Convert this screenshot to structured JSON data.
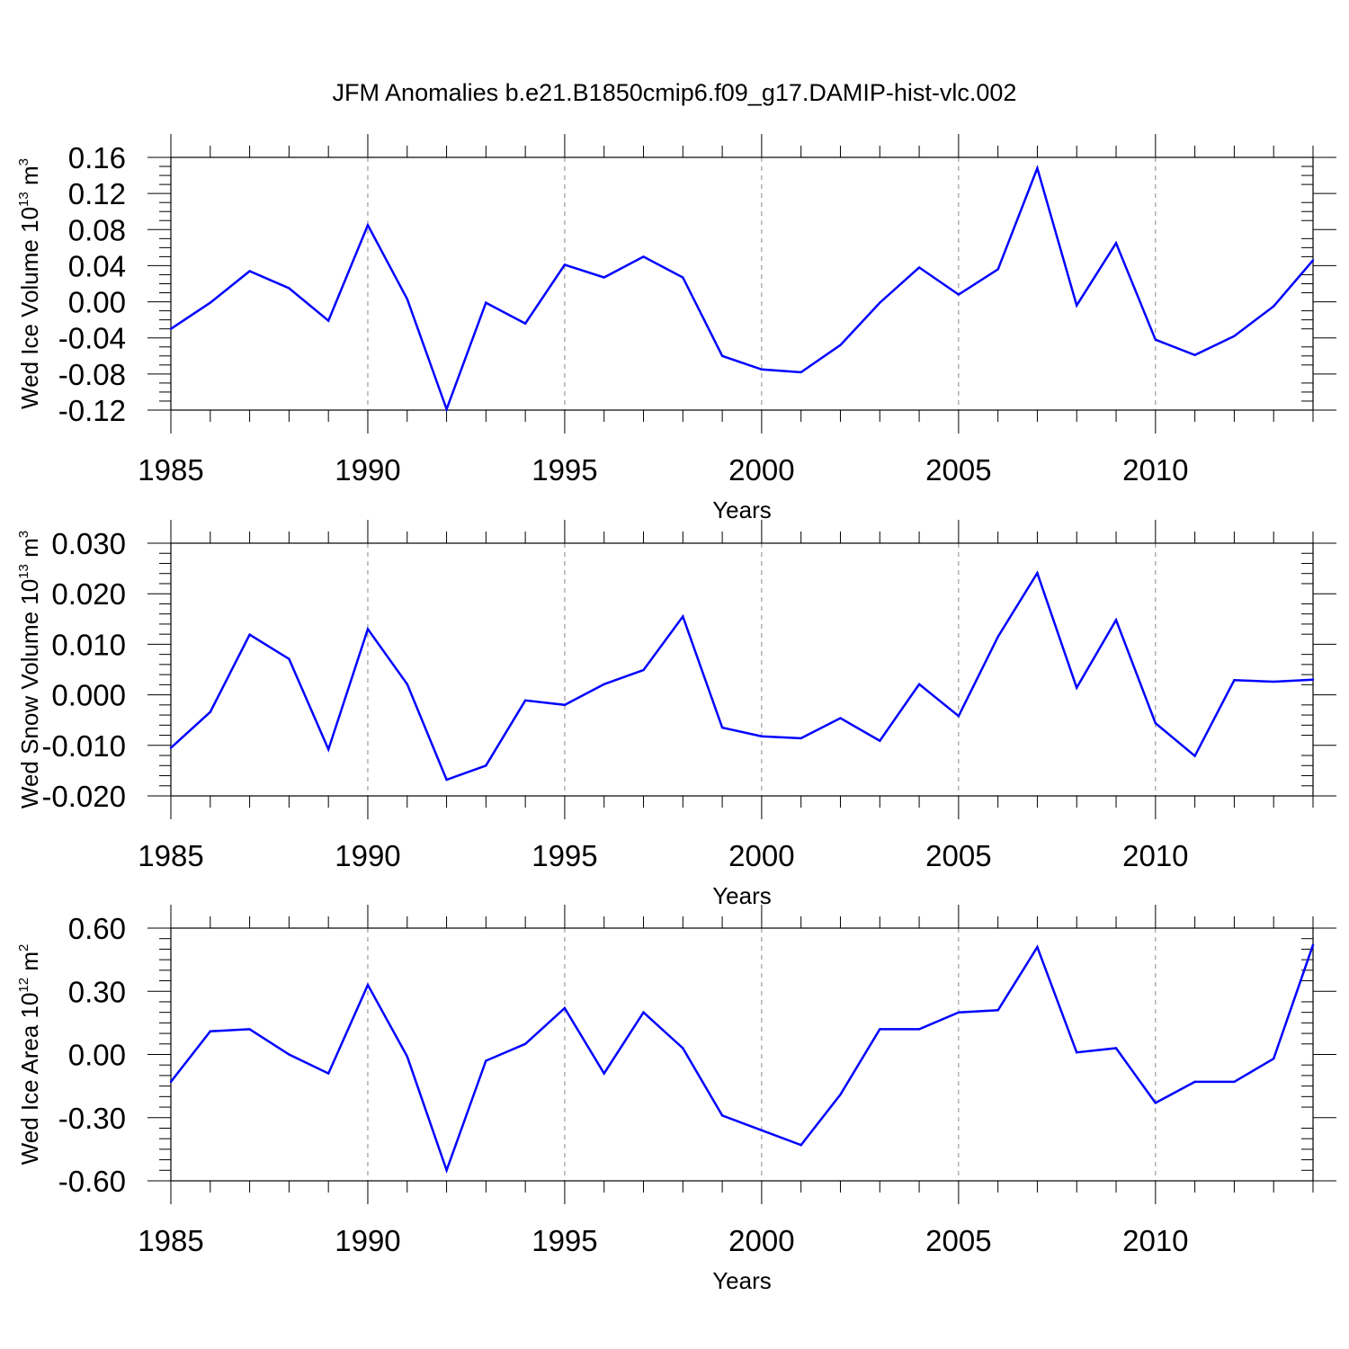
{
  "title": "JFM Anomalies b.e21.B1850cmip6.f09_g17.DAMIP-hist-vlc.002",
  "colors": {
    "line": "#0000ff",
    "axis": "#000000",
    "grid": "#888888"
  },
  "chart_data": [
    {
      "type": "line",
      "title": "",
      "xlabel": "Years",
      "ylabel": {
        "text": "Wed Ice Volume 10",
        "exponent": "13",
        "unit": " m",
        "unit_exponent": "3"
      },
      "xlim": [
        1985,
        2014
      ],
      "ylim": [
        -0.12,
        0.16
      ],
      "x_ticks": [
        1985,
        1990,
        1995,
        2000,
        2005,
        2010
      ],
      "x_tick_labels": [
        "1985",
        "1990",
        "1995",
        "2000",
        "2005",
        "2010"
      ],
      "y_ticks": [
        -0.12,
        -0.08,
        -0.04,
        0.0,
        0.04,
        0.08,
        0.12,
        0.16
      ],
      "y_tick_labels": [
        "-0.12",
        "-0.08",
        "-0.04",
        "0.00",
        "0.04",
        "0.08",
        "0.12",
        "0.16"
      ],
      "x_minor_step": 1,
      "y_minor_step": 0.01,
      "grid": "vertical dashed at major x ticks",
      "series": [
        {
          "name": "Wed Ice Volume",
          "x": [
            1985,
            1986,
            1987,
            1988,
            1989,
            1990,
            1991,
            1992,
            1993,
            1994,
            1995,
            1996,
            1997,
            1998,
            1999,
            2000,
            2001,
            2002,
            2003,
            2004,
            2005,
            2006,
            2007,
            2008,
            2009,
            2010,
            2011,
            2012,
            2013,
            2014
          ],
          "values": [
            -0.03,
            -0.001,
            0.034,
            0.015,
            -0.021,
            0.085,
            0.003,
            -0.119,
            -0.001,
            -0.024,
            0.041,
            0.027,
            0.05,
            0.027,
            -0.06,
            -0.075,
            -0.078,
            -0.048,
            -0.001,
            0.038,
            0.008,
            0.036,
            0.148,
            -0.004,
            0.065,
            -0.042,
            -0.059,
            -0.038,
            -0.005,
            0.046
          ]
        }
      ]
    },
    {
      "type": "line",
      "title": "",
      "xlabel": "Years",
      "ylabel": {
        "text": "Wed Snow Volume 10",
        "exponent": "13",
        "unit": " m",
        "unit_exponent": "3"
      },
      "xlim": [
        1985,
        2014
      ],
      "ylim": [
        -0.02,
        0.03
      ],
      "x_ticks": [
        1985,
        1990,
        1995,
        2000,
        2005,
        2010
      ],
      "x_tick_labels": [
        "1985",
        "1990",
        "1995",
        "2000",
        "2005",
        "2010"
      ],
      "y_ticks": [
        -0.02,
        -0.01,
        0.0,
        0.01,
        0.02,
        0.03
      ],
      "y_tick_labels": [
        "-0.020",
        "-0.010",
        "0.000",
        "0.010",
        "0.020",
        "0.030"
      ],
      "x_minor_step": 1,
      "y_minor_step": 0.002,
      "grid": "vertical dashed at major x ticks",
      "series": [
        {
          "name": "Wed Snow Volume",
          "x": [
            1985,
            1986,
            1987,
            1988,
            1989,
            1990,
            1991,
            1992,
            1993,
            1994,
            1995,
            1996,
            1997,
            1998,
            1999,
            2000,
            2001,
            2002,
            2003,
            2004,
            2005,
            2006,
            2007,
            2008,
            2009,
            2010,
            2011,
            2012,
            2013,
            2014
          ],
          "values": [
            -0.0105,
            -0.0034,
            0.0119,
            0.0071,
            -0.0108,
            0.013,
            0.0021,
            -0.0168,
            -0.014,
            -0.0011,
            -0.002,
            0.0021,
            0.0049,
            0.0155,
            -0.0065,
            -0.0082,
            -0.0086,
            -0.0046,
            -0.0091,
            0.0021,
            -0.0042,
            0.0115,
            0.0241,
            0.0014,
            0.0148,
            -0.0056,
            -0.0121,
            0.0029,
            0.0026,
            0.003
          ]
        }
      ]
    },
    {
      "type": "line",
      "title": "",
      "xlabel": "Years",
      "ylabel": {
        "text": "Wed Ice Area 10",
        "exponent": "12",
        "unit": " m",
        "unit_exponent": "2"
      },
      "xlim": [
        1985,
        2014
      ],
      "ylim": [
        -0.6,
        0.6
      ],
      "x_ticks": [
        1985,
        1990,
        1995,
        2000,
        2005,
        2010
      ],
      "x_tick_labels": [
        "1985",
        "1990",
        "1995",
        "2000",
        "2005",
        "2010"
      ],
      "y_ticks": [
        -0.6,
        -0.3,
        0.0,
        0.3,
        0.6
      ],
      "y_tick_labels": [
        "-0.60",
        "-0.30",
        "0.00",
        "0.30",
        "0.60"
      ],
      "x_minor_step": 1,
      "y_minor_step": 0.05,
      "grid": "vertical dashed at major x ticks",
      "series": [
        {
          "name": "Wed Ice Area",
          "x": [
            1985,
            1986,
            1987,
            1988,
            1989,
            1990,
            1991,
            1992,
            1993,
            1994,
            1995,
            1996,
            1997,
            1998,
            1999,
            2000,
            2001,
            2002,
            2003,
            2004,
            2005,
            2006,
            2007,
            2008,
            2009,
            2010,
            2011,
            2012,
            2013,
            2014
          ],
          "values": [
            -0.13,
            0.11,
            0.12,
            0.0,
            -0.09,
            0.33,
            -0.01,
            -0.55,
            -0.03,
            0.05,
            0.22,
            -0.09,
            0.2,
            0.03,
            -0.29,
            -0.36,
            -0.43,
            -0.19,
            0.12,
            0.12,
            0.2,
            0.21,
            0.51,
            0.01,
            0.03,
            -0.23,
            -0.13,
            -0.13,
            -0.02,
            0.52
          ]
        }
      ]
    }
  ]
}
